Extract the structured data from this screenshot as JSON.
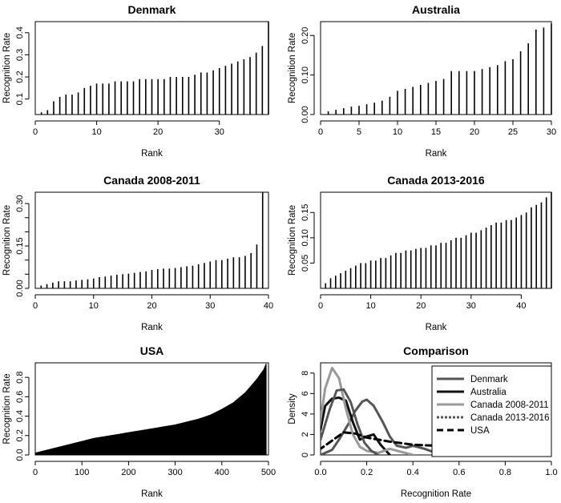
{
  "chart_data": [
    {
      "type": "bar",
      "title": "Denmark",
      "xlabel": "Rank",
      "ylabel": "Recognition Rate",
      "xlim": [
        0,
        38
      ],
      "ylim": [
        0.03,
        0.45
      ],
      "xticks": [
        0,
        10,
        20,
        30
      ],
      "yticks": [
        0.1,
        0.2,
        0.3,
        0.4
      ],
      "yticklabels": [
        "0.1",
        "0.2",
        "0.3",
        "0.4"
      ],
      "x": [
        1,
        2,
        3,
        4,
        5,
        6,
        7,
        8,
        9,
        10,
        11,
        12,
        13,
        14,
        15,
        16,
        17,
        18,
        19,
        20,
        21,
        22,
        23,
        24,
        25,
        26,
        27,
        28,
        29,
        30,
        31,
        32,
        33,
        34,
        35,
        36,
        37,
        38
      ],
      "values": [
        0.04,
        0.05,
        0.09,
        0.11,
        0.12,
        0.12,
        0.13,
        0.15,
        0.16,
        0.17,
        0.17,
        0.17,
        0.18,
        0.18,
        0.18,
        0.18,
        0.19,
        0.19,
        0.19,
        0.19,
        0.19,
        0.2,
        0.2,
        0.2,
        0.2,
        0.21,
        0.22,
        0.22,
        0.23,
        0.24,
        0.25,
        0.26,
        0.27,
        0.28,
        0.29,
        0.31,
        0.34,
        0.45
      ]
    },
    {
      "type": "bar",
      "title": "Australia",
      "xlabel": "Rank",
      "ylabel": "Recognition Rate",
      "xlim": [
        0,
        30
      ],
      "ylim": [
        0,
        0.235
      ],
      "xticks": [
        0,
        5,
        10,
        15,
        20,
        25,
        30
      ],
      "yticks": [
        0,
        0.1,
        0.2
      ],
      "yticklabels": [
        "0.00",
        "0.10",
        "0.20"
      ],
      "x": [
        1,
        2,
        3,
        4,
        5,
        6,
        7,
        8,
        9,
        10,
        11,
        12,
        13,
        14,
        15,
        16,
        17,
        18,
        19,
        20,
        21,
        22,
        23,
        24,
        25,
        26,
        27,
        28,
        29,
        30
      ],
      "values": [
        0.008,
        0.012,
        0.016,
        0.02,
        0.022,
        0.026,
        0.03,
        0.035,
        0.045,
        0.06,
        0.065,
        0.07,
        0.075,
        0.08,
        0.085,
        0.09,
        0.11,
        0.11,
        0.11,
        0.11,
        0.115,
        0.12,
        0.125,
        0.135,
        0.14,
        0.16,
        0.18,
        0.215,
        0.22,
        0.23
      ]
    },
    {
      "type": "bar",
      "title": "Canada 2008-2011",
      "xlabel": "Rank",
      "ylabel": "Recognition Rate",
      "xlim": [
        0,
        40
      ],
      "ylim": [
        0,
        0.34
      ],
      "xticks": [
        0,
        10,
        20,
        30,
        40
      ],
      "yticks": [
        0,
        0.05,
        0.1,
        0.15,
        0.2,
        0.25,
        0.3
      ],
      "yticklabels": [
        "0.00",
        "",
        "",
        "0.15",
        "",
        "",
        "0.30"
      ],
      "x": [
        1,
        2,
        3,
        4,
        5,
        6,
        7,
        8,
        9,
        10,
        11,
        12,
        13,
        14,
        15,
        16,
        17,
        18,
        19,
        20,
        21,
        22,
        23,
        24,
        25,
        26,
        27,
        28,
        29,
        30,
        31,
        32,
        33,
        34,
        35,
        36,
        37,
        38,
        39
      ],
      "values": [
        0.01,
        0.015,
        0.02,
        0.025,
        0.025,
        0.025,
        0.028,
        0.03,
        0.032,
        0.035,
        0.04,
        0.042,
        0.045,
        0.048,
        0.05,
        0.052,
        0.055,
        0.058,
        0.06,
        0.065,
        0.068,
        0.07,
        0.07,
        0.072,
        0.075,
        0.078,
        0.08,
        0.085,
        0.09,
        0.095,
        0.1,
        0.1,
        0.105,
        0.11,
        0.11,
        0.115,
        0.125,
        0.155,
        0.34
      ]
    },
    {
      "type": "bar",
      "title": "Canada 2013-2016",
      "xlabel": "Rank",
      "ylabel": "Recognition Rate",
      "xlim": [
        0,
        46
      ],
      "ylim": [
        0,
        0.19
      ],
      "xticks": [
        0,
        10,
        20,
        30,
        40
      ],
      "yticks": [
        0.05,
        0.1,
        0.15
      ],
      "yticklabels": [
        "0.05",
        "0.10",
        "0.15"
      ],
      "x": [
        1,
        2,
        3,
        4,
        5,
        6,
        7,
        8,
        9,
        10,
        11,
        12,
        13,
        14,
        15,
        16,
        17,
        18,
        19,
        20,
        21,
        22,
        23,
        24,
        25,
        26,
        27,
        28,
        29,
        30,
        31,
        32,
        33,
        34,
        35,
        36,
        37,
        38,
        39,
        40,
        41,
        42,
        43,
        44,
        45,
        46
      ],
      "values": [
        0.01,
        0.02,
        0.025,
        0.03,
        0.035,
        0.04,
        0.045,
        0.05,
        0.05,
        0.055,
        0.055,
        0.06,
        0.06,
        0.065,
        0.07,
        0.07,
        0.075,
        0.075,
        0.078,
        0.08,
        0.08,
        0.085,
        0.085,
        0.09,
        0.09,
        0.095,
        0.1,
        0.1,
        0.105,
        0.11,
        0.11,
        0.115,
        0.12,
        0.125,
        0.13,
        0.13,
        0.135,
        0.135,
        0.14,
        0.145,
        0.15,
        0.16,
        0.165,
        0.17,
        0.18,
        0.19
      ]
    },
    {
      "type": "area",
      "title": "USA",
      "xlabel": "Rank",
      "ylabel": "Recognition Rate",
      "xlim": [
        0,
        500
      ],
      "ylim": [
        0,
        0.95
      ],
      "xticks": [
        0,
        100,
        200,
        300,
        400,
        500
      ],
      "yticks": [
        0,
        0.2,
        0.4,
        0.6,
        0.8
      ],
      "yticklabels": [
        "0.0",
        "0.2",
        "0.4",
        "0.6",
        "0.8"
      ],
      "x": [
        0,
        25,
        50,
        75,
        100,
        125,
        150,
        175,
        200,
        225,
        250,
        275,
        300,
        325,
        350,
        375,
        400,
        425,
        450,
        475,
        490,
        495
      ],
      "values": [
        0.02,
        0.05,
        0.08,
        0.11,
        0.14,
        0.17,
        0.19,
        0.21,
        0.23,
        0.25,
        0.27,
        0.29,
        0.31,
        0.34,
        0.37,
        0.41,
        0.47,
        0.54,
        0.64,
        0.78,
        0.88,
        0.94
      ]
    },
    {
      "type": "line",
      "title": "Comparison",
      "xlabel": "Recognition Rate",
      "ylabel": "Density",
      "xlim": [
        0,
        1.0
      ],
      "ylim": [
        0,
        9
      ],
      "xticks": [
        0,
        0.2,
        0.4,
        0.6,
        0.8,
        1.0
      ],
      "xticklabels": [
        "0.0",
        "0.2",
        "0.4",
        "0.6",
        "0.8",
        "1.0"
      ],
      "yticks": [
        0,
        2,
        4,
        6,
        8
      ],
      "legend_position": "top-right",
      "series": [
        {
          "name": "Denmark",
          "color": "#555555",
          "dash": "solid",
          "x": [
            0.0,
            0.05,
            0.08,
            0.12,
            0.15,
            0.18,
            0.2,
            0.23,
            0.27,
            0.3,
            0.33,
            0.37,
            0.4,
            0.45,
            0.5,
            0.55
          ],
          "values": [
            0.0,
            0.5,
            1.5,
            3.0,
            4.3,
            5.2,
            5.4,
            4.8,
            3.2,
            1.8,
            0.9,
            0.7,
            0.9,
            0.6,
            0.2,
            0.0
          ]
        },
        {
          "name": "Australia",
          "color": "#111111",
          "dash": "solid",
          "x": [
            -0.05,
            0.0,
            0.02,
            0.05,
            0.08,
            0.11,
            0.14,
            0.17,
            0.2,
            0.23,
            0.26,
            0.3
          ],
          "values": [
            0.0,
            2.5,
            4.8,
            5.5,
            5.6,
            5.3,
            3.2,
            1.5,
            1.8,
            2.0,
            1.0,
            0.0
          ]
        },
        {
          "name": "Canada 2008-2011",
          "color": "#999999",
          "dash": "solid",
          "x": [
            -0.05,
            -0.01,
            0.02,
            0.05,
            0.08,
            0.11,
            0.14,
            0.17,
            0.2,
            0.25,
            0.3,
            0.35,
            0.4
          ],
          "values": [
            0.0,
            2.0,
            6.5,
            8.5,
            7.5,
            4.5,
            2.0,
            0.8,
            0.4,
            0.2,
            0.6,
            0.3,
            0.0
          ]
        },
        {
          "name": "Canada 2013-2016",
          "color": "#555555",
          "dash": "dotted",
          "x": [
            -0.04,
            0.0,
            0.04,
            0.07,
            0.1,
            0.13,
            0.16,
            0.19,
            0.22,
            0.25
          ],
          "values": [
            0.0,
            1.5,
            4.5,
            6.3,
            6.4,
            5.2,
            3.0,
            1.2,
            0.4,
            0.0
          ]
        },
        {
          "name": "USA",
          "color": "#000000",
          "dash": "dashed",
          "x": [
            -0.05,
            0.0,
            0.05,
            0.1,
            0.15,
            0.2,
            0.25,
            0.3,
            0.4,
            0.5,
            0.6,
            0.7,
            0.8,
            0.9,
            1.0,
            1.05
          ],
          "values": [
            0.0,
            0.6,
            1.4,
            2.2,
            2.1,
            1.7,
            1.5,
            1.3,
            1.0,
            0.9,
            0.8,
            0.6,
            0.5,
            0.35,
            0.15,
            0.05
          ]
        }
      ]
    }
  ]
}
